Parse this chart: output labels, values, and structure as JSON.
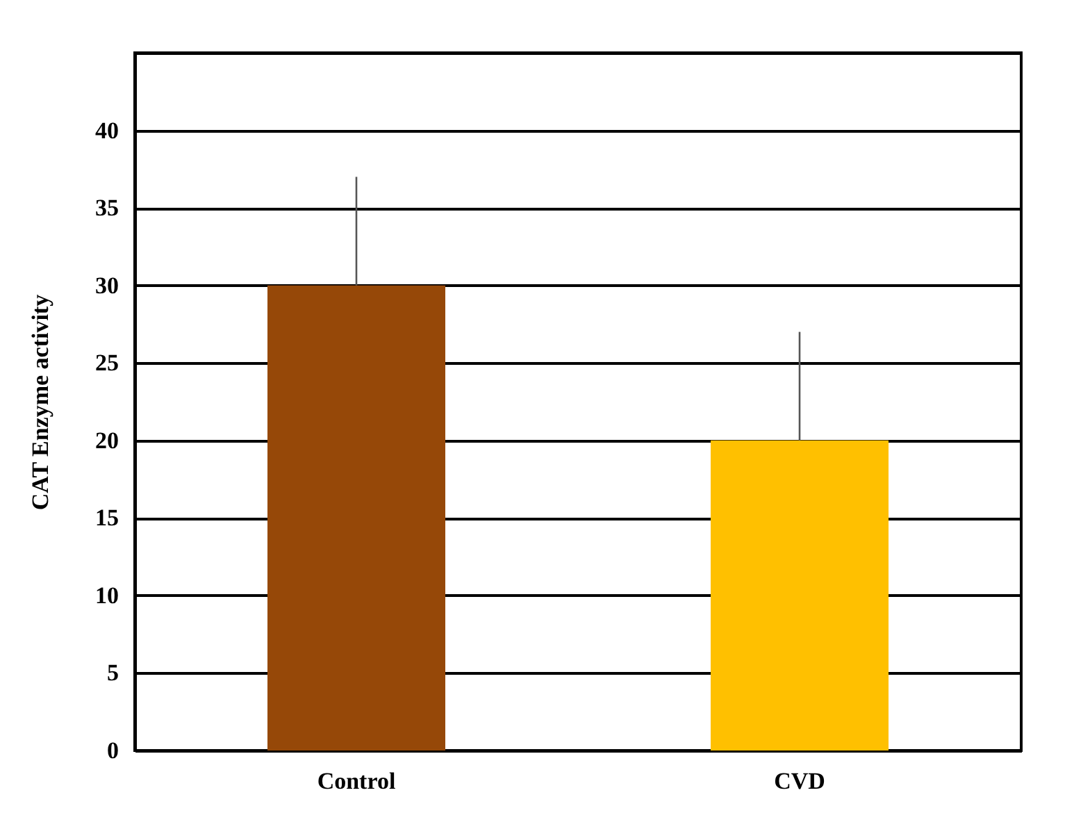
{
  "chart_data": {
    "type": "bar",
    "ylabel": "CAT Enzyme activity",
    "categories": [
      "Control",
      "CVD"
    ],
    "values": [
      30,
      20
    ],
    "colors": [
      "#964808",
      "#ffc000"
    ],
    "errors": [
      [
        30,
        37
      ],
      [
        20,
        27
      ]
    ],
    "ylim": [
      0,
      45
    ],
    "yticks": [
      0,
      5,
      10,
      15,
      20,
      25,
      30,
      35,
      40,
      {
        "value": 45,
        "label": null
      }
    ],
    "grid": "y"
  }
}
